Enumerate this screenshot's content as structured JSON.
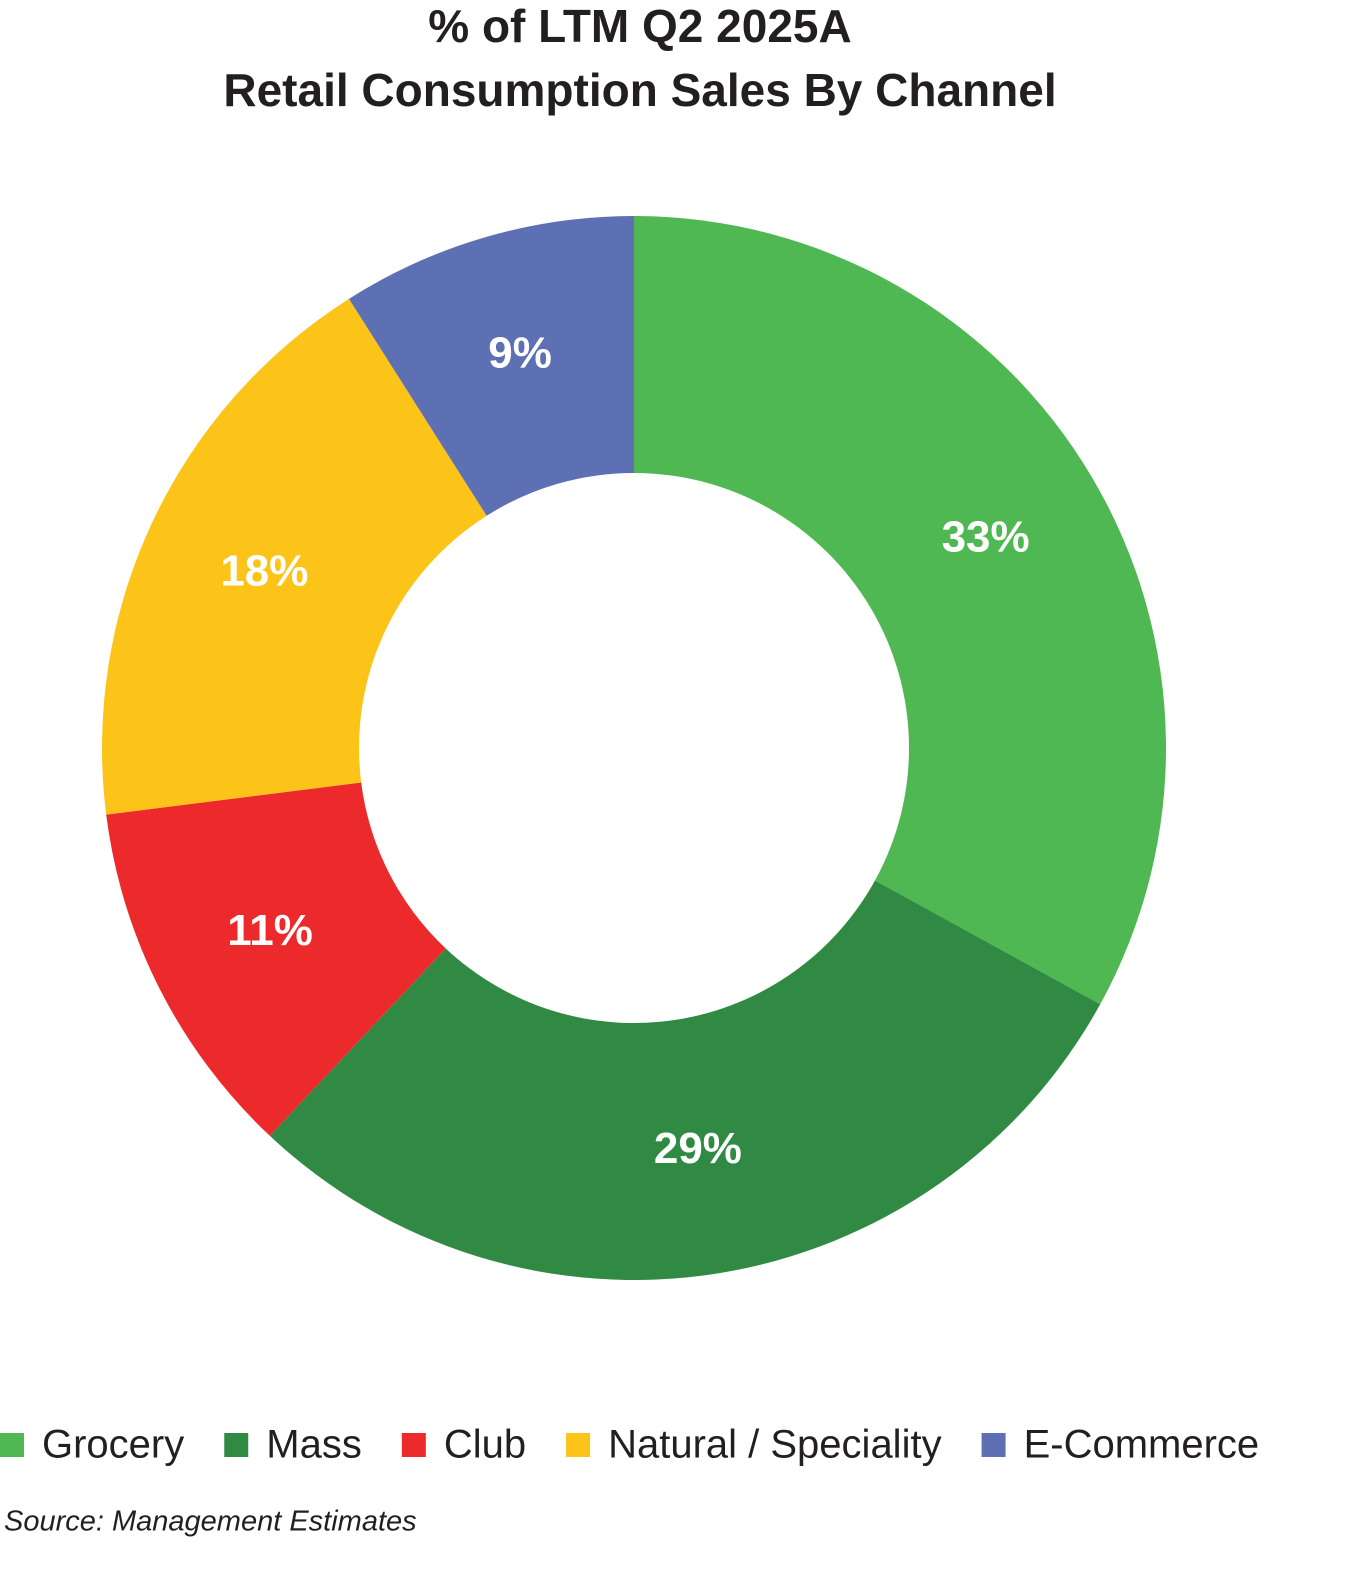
{
  "chart_data": {
    "type": "donut",
    "title": "% of LTM Q2 2025A",
    "subtitle": "Retail Consumption Sales By Channel",
    "categories": [
      "Grocery",
      "Mass",
      "Club",
      "Natural / Speciality",
      "E-Commerce"
    ],
    "values": [
      33,
      29,
      11,
      18,
      9
    ],
    "value_labels": [
      "33%",
      "29%",
      "11%",
      "18%",
      "9%"
    ],
    "colors": [
      "#4fb853",
      "#318a43",
      "#ec2a2c",
      "#fcc418",
      "#5c70b3"
    ],
    "legend": "bottom",
    "source": "Source: Management Estimates"
  }
}
